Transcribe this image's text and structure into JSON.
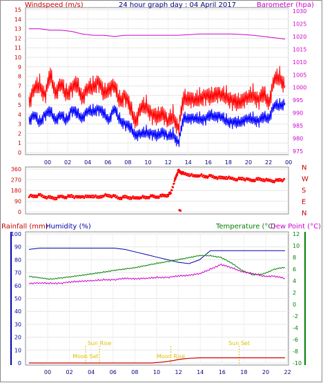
{
  "header": {
    "windspeed_label": "Windspeed (m/s)",
    "title": "24 hour graph day : 04 April 2017",
    "barometer_label": "Barometer (hpa)"
  },
  "colors": {
    "wind_avg": "#0000ff",
    "wind_gust": "#ff0000",
    "barometer": "#cc00cc",
    "direction": "#ff0000",
    "humidity": "#0000aa",
    "temperature": "#008000",
    "dewpoint": "#cc00cc",
    "rainfall": "#cc0000",
    "astro": "#e0c000",
    "axis_left": "#0000aa",
    "axis_right": "#008000"
  },
  "chart_data": [
    {
      "type": "line",
      "name": "wind",
      "x_ticks": [
        "00",
        "02",
        "04",
        "06",
        "08",
        "10",
        "12",
        "14",
        "16",
        "18",
        "20",
        "22",
        "00"
      ],
      "ylim_left": [
        0,
        15
      ],
      "y_ticks_left": [
        "0",
        "1",
        "2",
        "3",
        "4",
        "5",
        "6",
        "7",
        "8",
        "9",
        "10",
        "11",
        "12",
        "13",
        "14",
        "15"
      ],
      "ylim_right": [
        975,
        1030
      ],
      "y_ticks_right": [
        "975",
        "980",
        "985",
        "990",
        "995",
        "1000",
        "1005",
        "1010",
        "1015",
        "1020",
        "1025",
        "1030"
      ],
      "series": [
        {
          "key": "gust",
          "axis": "left",
          "x": [
            0,
            0.5,
            1,
            1.5,
            2,
            2.5,
            3,
            3.5,
            4,
            4.5,
            5,
            5.5,
            6,
            6.5,
            7,
            7.5,
            8,
            8.5,
            9,
            9.5,
            10,
            10.5,
            11,
            11.5,
            12,
            12.5,
            13,
            13.5,
            14,
            14.5,
            15,
            15.5,
            16,
            16.5,
            17,
            17.5,
            18,
            18.5,
            19,
            19.5,
            20,
            20.5,
            21,
            21.5,
            22,
            22.5,
            23,
            23.5,
            24
          ],
          "values": [
            5.5,
            6.5,
            7.2,
            6,
            8,
            6.5,
            7,
            6.2,
            6.8,
            7,
            6,
            6.5,
            7,
            7.5,
            6,
            7,
            6.8,
            5.5,
            6,
            4.5,
            3.5,
            4.5,
            5,
            4,
            3.5,
            4.5,
            3,
            4,
            2.5,
            5.5,
            6,
            5.2,
            5.8,
            6,
            5.6,
            6.5,
            5.8,
            6,
            5.5,
            5,
            5.8,
            5.5,
            6.2,
            5.5,
            6,
            5.5,
            7.5,
            8,
            7
          ]
        },
        {
          "key": "avg",
          "axis": "left",
          "x": [
            0,
            0.5,
            1,
            1.5,
            2,
            2.5,
            3,
            3.5,
            4,
            4.5,
            5,
            5.5,
            6,
            6.5,
            7,
            7.5,
            8,
            8.5,
            9,
            9.5,
            10,
            10.5,
            11,
            11.5,
            12,
            12.5,
            13,
            13.5,
            14,
            14.5,
            15,
            15.5,
            16,
            16.5,
            17,
            17.5,
            18,
            18.5,
            19,
            19.5,
            20,
            20.5,
            21,
            21.5,
            22,
            22.5,
            23,
            23.5,
            24
          ],
          "values": [
            3.5,
            3.8,
            3.2,
            4,
            4.2,
            3.6,
            3.8,
            3.4,
            4.5,
            4,
            3.8,
            4.2,
            4.4,
            4.6,
            4,
            3.6,
            4.5,
            3.5,
            3,
            2.5,
            2,
            1.8,
            2.2,
            2,
            1.6,
            2.4,
            1.5,
            2,
            1,
            3.5,
            3.8,
            3.4,
            3.6,
            3.5,
            3.8,
            4,
            3.6,
            3.4,
            3.2,
            3,
            3.5,
            3.4,
            3.6,
            3.3,
            3.6,
            3.8,
            4.8,
            5,
            5.2
          ]
        },
        {
          "key": "barometer",
          "axis": "right",
          "x": [
            0,
            1,
            2,
            3,
            4,
            5,
            6,
            7,
            8,
            9,
            10,
            11,
            12,
            13,
            14,
            15,
            16,
            17,
            18,
            19,
            20,
            21,
            22,
            23,
            24
          ],
          "values": [
            1023,
            1023,
            1022.5,
            1022.5,
            1022,
            1021,
            1020.5,
            1020.5,
            1020,
            1020.5,
            1020.5,
            1020.5,
            1020.5,
            1020.5,
            1020.5,
            1020.7,
            1021,
            1021,
            1021,
            1021,
            1020.8,
            1020.5,
            1020,
            1019.5,
            1019
          ]
        }
      ]
    },
    {
      "type": "scatter",
      "name": "wind_direction",
      "x_ticks": [
        "00",
        "02",
        "04",
        "06",
        "08",
        "10",
        "12",
        "14",
        "16",
        "18",
        "20",
        "22",
        "00"
      ],
      "ylim": [
        0,
        360
      ],
      "y_ticks": [
        "0",
        "90",
        "180",
        "270",
        "360"
      ],
      "compass_labels": [
        "N",
        "W",
        "S",
        "E",
        "N"
      ],
      "x": [
        0,
        0.5,
        1,
        1.5,
        2,
        2.5,
        3,
        3.5,
        4,
        4.5,
        5,
        5.5,
        6,
        6.5,
        7,
        7.5,
        8,
        8.5,
        9,
        9.5,
        10,
        10.5,
        11,
        11.5,
        12,
        12.5,
        13,
        13.3,
        13.6,
        13.8,
        14,
        14.2,
        14.5,
        15,
        15.5,
        16,
        16.5,
        17,
        17.5,
        18,
        18.5,
        19,
        19.5,
        20,
        20.5,
        21,
        21.5,
        22,
        22.5,
        23,
        23.5,
        24
      ],
      "values": [
        135,
        130,
        140,
        125,
        120,
        115,
        130,
        125,
        135,
        120,
        130,
        125,
        135,
        120,
        140,
        135,
        130,
        115,
        125,
        120,
        115,
        125,
        120,
        130,
        125,
        135,
        140,
        160,
        250,
        300,
        345,
        335,
        320,
        315,
        300,
        310,
        295,
        300,
        290,
        285,
        290,
        280,
        275,
        280,
        270,
        265,
        275,
        270,
        265,
        260,
        270,
        265
      ]
    },
    {
      "type": "line",
      "name": "temp_humidity",
      "x_ticks": [
        "00",
        "02",
        "04",
        "06",
        "08",
        "10",
        "12",
        "14",
        "16",
        "18",
        "20",
        "22"
      ],
      "ylim_left": [
        0,
        100
      ],
      "y_ticks_left": [
        "0",
        "10",
        "20",
        "30",
        "40",
        "50",
        "60",
        "70",
        "80",
        "90",
        "100"
      ],
      "ylim_right": [
        -10,
        12
      ],
      "y_ticks_right": [
        "-10",
        "-8",
        "-6",
        "-4",
        "-2",
        "0",
        "2",
        "4",
        "6",
        "8",
        "10",
        "12"
      ],
      "astro_labels": [
        "Moon Set",
        "Sun Rise",
        "Moon Rise",
        "Sun Set"
      ],
      "astro_times": [
        5.3,
        6.6,
        13.3,
        19.7
      ],
      "series": [
        {
          "key": "humidity",
          "axis": "left",
          "x": [
            0,
            1,
            2,
            3,
            4,
            5,
            6,
            7,
            8,
            9,
            10,
            11,
            12,
            13,
            14,
            15,
            16,
            17,
            18,
            19,
            20,
            21,
            22,
            23,
            24
          ],
          "values": [
            88,
            89,
            89,
            89,
            89,
            89,
            89,
            89,
            89,
            88,
            86,
            84,
            82,
            80,
            78,
            77,
            80,
            87,
            87,
            87,
            87,
            87,
            87,
            87,
            87
          ]
        },
        {
          "key": "temperature",
          "axis": "right",
          "x": [
            0,
            1,
            2,
            3,
            4,
            5,
            6,
            7,
            8,
            9,
            10,
            11,
            12,
            13,
            14,
            15,
            16,
            17,
            18,
            19,
            20,
            21,
            22,
            23,
            24
          ],
          "values": [
            4.8,
            4.5,
            4.3,
            4.5,
            4.7,
            5,
            5.2,
            5.5,
            5.8,
            6,
            6.3,
            6.6,
            7,
            7.3,
            7.6,
            8,
            8.3,
            8.3,
            8,
            7,
            5.8,
            5,
            5.2,
            6,
            6.3
          ]
        },
        {
          "key": "dewpoint",
          "axis": "right",
          "x": [
            0,
            1,
            2,
            3,
            4,
            5,
            6,
            7,
            8,
            9,
            10,
            11,
            12,
            13,
            14,
            15,
            16,
            17,
            18,
            19,
            20,
            21,
            22,
            23,
            24
          ],
          "values": [
            3.6,
            3.6,
            3.6,
            3.6,
            3.8,
            4,
            4,
            4.2,
            4.2,
            4.4,
            4.4,
            4.4,
            4.6,
            4.6,
            4.8,
            5,
            5.2,
            6,
            6.8,
            6.2,
            5.6,
            5.2,
            4.8,
            4.8,
            4.4
          ]
        },
        {
          "key": "rainfall",
          "axis": "left",
          "x": [
            0,
            11.5,
            12.5,
            13.5,
            14,
            14.5,
            15,
            16,
            18,
            20,
            22,
            24
          ],
          "values": [
            0,
            0,
            0.7,
            1.8,
            2.7,
            3.2,
            3.6,
            4,
            4,
            4,
            4,
            4
          ]
        }
      ]
    }
  ],
  "panel3": {
    "rainfall_label": "Rainfall (mm)",
    "humidity_label": "Humidity (%)",
    "temperature_label": "Temperature (°C)",
    "dewpoint_label": "Dew Point (°C)"
  }
}
